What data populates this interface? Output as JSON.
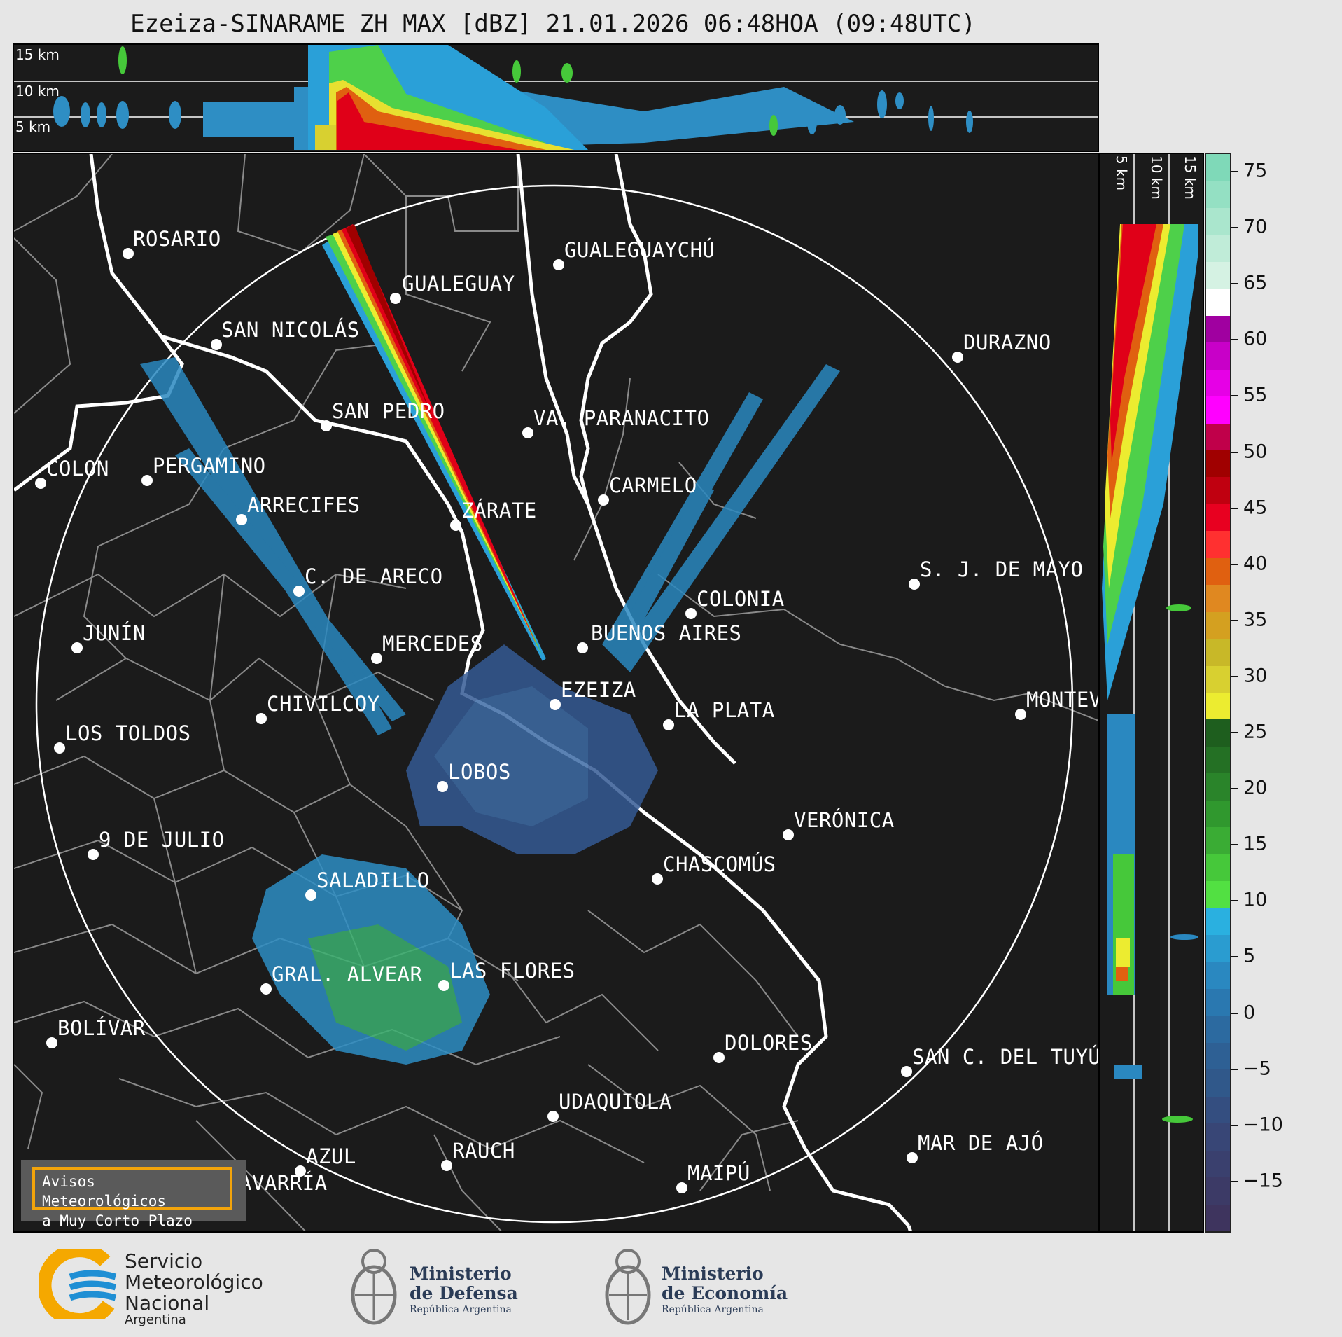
{
  "title": "Ezeiza-SINARAME ZH MAX [dBZ] 21.01.2026 06:48HOA (09:48UTC)",
  "altitude_labels": [
    "15 km",
    "10 km",
    "5 km"
  ],
  "side_altitude_labels": [
    "5 km",
    "10 km",
    "15 km"
  ],
  "cities": [
    {
      "name": "ROSARIO"
    },
    {
      "name": "GUALEGUAYCHÚ"
    },
    {
      "name": "GUALEGUAY"
    },
    {
      "name": "SAN NICOLÁS"
    },
    {
      "name": "DURAZNO"
    },
    {
      "name": "SAN PEDRO"
    },
    {
      "name": "VA. PARANACITO"
    },
    {
      "name": "COLON"
    },
    {
      "name": "PERGAMINO"
    },
    {
      "name": "CARMELO"
    },
    {
      "name": "ARRECIFES"
    },
    {
      "name": "ZÁRATE"
    },
    {
      "name": "S. J. DE MAYO"
    },
    {
      "name": "C. DE ARECO"
    },
    {
      "name": "COLONIA"
    },
    {
      "name": "JUNÍN"
    },
    {
      "name": "BUENOS AIRES"
    },
    {
      "name": "MERCEDES"
    },
    {
      "name": "EZEIZA"
    },
    {
      "name": "MONTEV"
    },
    {
      "name": "CHIVILCOY"
    },
    {
      "name": "LA PLATA"
    },
    {
      "name": "LOS TOLDOS"
    },
    {
      "name": "LOBOS"
    },
    {
      "name": "VERÓNICA"
    },
    {
      "name": "9 DE JULIO"
    },
    {
      "name": "CHASCOMÚS"
    },
    {
      "name": "SALADILLO"
    },
    {
      "name": "LAS FLORES"
    },
    {
      "name": "GRAL. ALVEAR"
    },
    {
      "name": "BOLÍVAR"
    },
    {
      "name": "DOLORES"
    },
    {
      "name": "SAN C. DEL TUYÚ"
    },
    {
      "name": "UDAQUIOLA"
    },
    {
      "name": "AZUL"
    },
    {
      "name": "RAUCH"
    },
    {
      "name": "MAR DE AJÓ"
    },
    {
      "name": "OLAVARRÍA"
    },
    {
      "name": "MAIPÚ"
    }
  ],
  "colorbar": {
    "ticks": [
      "75",
      "70",
      "65",
      "60",
      "55",
      "50",
      "45",
      "40",
      "35",
      "30",
      "25",
      "20",
      "15",
      "10",
      "5",
      "0",
      "−5",
      "−10",
      "−15"
    ],
    "colors": [
      "#7fd9b8",
      "#94e0c3",
      "#aae6cd",
      "#c0ecd8",
      "#d5f2e3",
      "#ffffff",
      "#a000a0",
      "#c800c8",
      "#e600e6",
      "#ff00ff",
      "#c0004a",
      "#a00000",
      "#c00010",
      "#e80020",
      "#ff3030",
      "#e06010",
      "#e08820",
      "#d4a020",
      "#c8b828",
      "#d8d030",
      "#ecec30",
      "#1e5e1e",
      "#247024",
      "#2a842a",
      "#30982e",
      "#3aac34",
      "#46c83a",
      "#52e042",
      "#2ab0e0",
      "#2a9cd0",
      "#2a88c0",
      "#2a78b0",
      "#2c6aa0",
      "#2e6094",
      "#30588a",
      "#344e80",
      "#384676",
      "#3a406e",
      "#3c3a66",
      "#3e345e"
    ]
  },
  "warning_box": {
    "line1": "Avisos Meteorológicos",
    "line2": "a Muy Corto Plazo"
  },
  "logos": {
    "smn": {
      "line1": "Servicio",
      "line2": "Meteorológico",
      "line3": "Nacional",
      "line4": "Argentina"
    },
    "defensa": {
      "line1": "Ministerio",
      "line2": "de Defensa",
      "line3": "República Argentina"
    },
    "economia": {
      "line1": "Ministerio",
      "line2": "de Economía",
      "line3": "República Argentina"
    }
  },
  "colors": {
    "background": "#e6e6e6",
    "map": "#1b1b1b",
    "border": "#ffffff",
    "smn_blue": "#1f8fd4",
    "smn_orange": "#f5a800"
  }
}
